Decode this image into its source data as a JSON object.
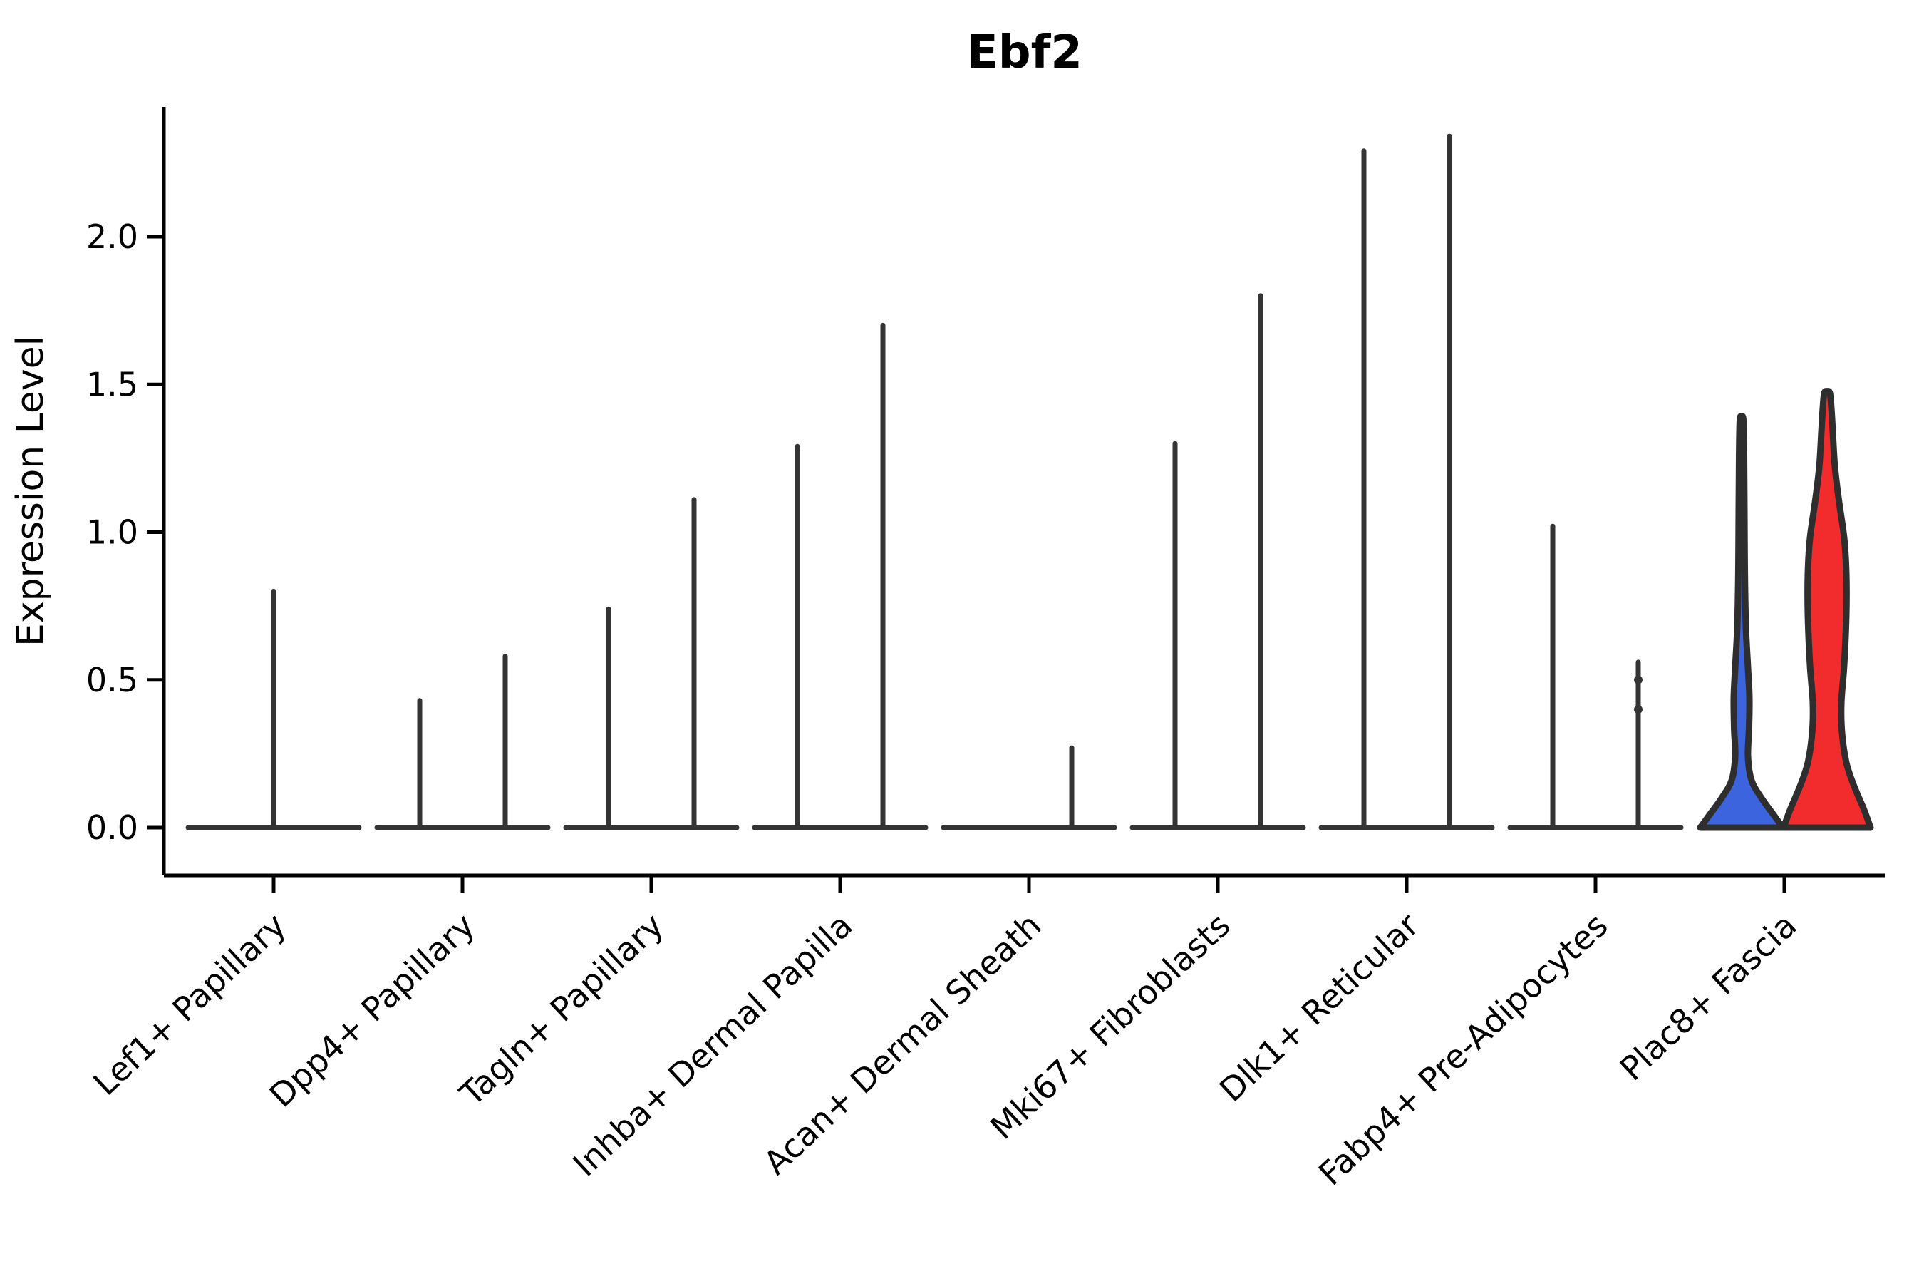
{
  "title": "Ebf2",
  "y_axis": {
    "label": "Expression Level",
    "ticks": [
      "0.0",
      "0.5",
      "1.0",
      "1.5",
      "2.0"
    ]
  },
  "chart_data": {
    "type": "violin",
    "title": "Ebf2",
    "ylabel": "Expression Level",
    "ylim": [
      0,
      2.44
    ],
    "grid": false,
    "legend": "none",
    "ytick_values": [
      0,
      0.5,
      1,
      1.5,
      2
    ],
    "ytick_labels": [
      "0.0",
      "0.5",
      "1.0",
      "1.5",
      "2.0"
    ],
    "categories": [
      "Lef1+ Papillary",
      "Dpp4+ Papillary",
      "Tagln+ Papillary",
      "Inhba+ Dermal Papilla",
      "Acan+ Dermal Sheath",
      "Mki67+ Fibroblasts",
      "Dlk1+ Reticular",
      "Fabp4+ Pre-Adipocytes",
      "Plac8+ Fascia"
    ],
    "style": {
      "left_group_fill": "#3B64DE",
      "right_group_fill": "#F22C2C",
      "outline_color": "#2E2E2E",
      "collapsed_violin_color": "#343434",
      "axis_color": "#000000"
    },
    "violins": [
      {
        "category": "Lef1+ Papillary",
        "layout": "single",
        "max": 0.8
      },
      {
        "category": "Dpp4+ Papillary",
        "layout": "split",
        "left_max": 0.43,
        "right_max": 0.58
      },
      {
        "category": "Tagln+ Papillary",
        "layout": "split",
        "left_max": 0.74,
        "right_max": 1.11
      },
      {
        "category": "Inhba+ Dermal Papilla",
        "layout": "split",
        "left_max": 1.29,
        "right_max": 1.7
      },
      {
        "category": "Acan+ Dermal Sheath",
        "layout": "split",
        "left_max": 0,
        "right_max": 0.27
      },
      {
        "category": "Mki67+ Fibroblasts",
        "layout": "split",
        "left_max": 1.3,
        "right_max": 1.8
      },
      {
        "category": "Dlk1+ Reticular",
        "layout": "split",
        "left_max": 2.29,
        "right_max": 2.34
      },
      {
        "category": "Fabp4+ Pre-Adipocytes",
        "layout": "split",
        "left_max": 1.02,
        "right_max": 0.56,
        "right_points": [
          0.5,
          0.4
        ]
      },
      {
        "category": "Plac8+ Fascia",
        "layout": "split-filled",
        "left": {
          "fill": "#3B64DE",
          "max": 1.38,
          "profile": [
            [
              0,
              58
            ],
            [
              0.04,
              46
            ],
            [
              0.1,
              28
            ],
            [
              0.16,
              14
            ],
            [
              0.24,
              9
            ],
            [
              0.34,
              10.5
            ],
            [
              0.44,
              11
            ],
            [
              0.54,
              9
            ],
            [
              0.68,
              6
            ],
            [
              0.88,
              4.5
            ],
            [
              1.08,
              4
            ],
            [
              1.26,
              3.5
            ],
            [
              1.38,
              2.5
            ]
          ]
        },
        "right": {
          "fill": "#F22C2C",
          "max": 1.47,
          "profile": [
            [
              0,
              61
            ],
            [
              0.06,
              52
            ],
            [
              0.14,
              38
            ],
            [
              0.22,
              27
            ],
            [
              0.32,
              21
            ],
            [
              0.42,
              20
            ],
            [
              0.55,
              24
            ],
            [
              0.72,
              27
            ],
            [
              0.86,
              27
            ],
            [
              0.98,
              24
            ],
            [
              1.1,
              17
            ],
            [
              1.22,
              11
            ],
            [
              1.34,
              8
            ],
            [
              1.42,
              6
            ],
            [
              1.47,
              4
            ]
          ]
        }
      }
    ]
  }
}
